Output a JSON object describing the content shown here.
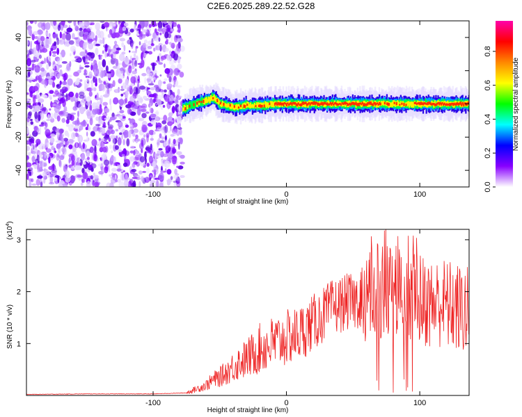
{
  "page": {
    "title": "C2E6.2025.289.22.52.G28"
  },
  "chart_data": [
    {
      "type": "heatmap",
      "title": "C2E6.2025.289.22.52.G28",
      "xlabel": "Height of straight line (km)",
      "ylabel": "Frequency (Hz)",
      "xlim": [
        -195,
        137
      ],
      "ylim": [
        -50,
        50
      ],
      "x_ticks": [
        -100,
        0,
        100
      ],
      "y_ticks": [
        -40,
        -20,
        0,
        20,
        40
      ],
      "noise_region_x": [
        -195,
        -78
      ],
      "signal_track": [
        {
          "x": -78,
          "y": -3
        },
        {
          "x": -70,
          "y": 0
        },
        {
          "x": -60,
          "y": 2
        },
        {
          "x": -55,
          "y": 4
        },
        {
          "x": -50,
          "y": 0
        },
        {
          "x": -40,
          "y": -2
        },
        {
          "x": -30,
          "y": -1
        },
        {
          "x": -20,
          "y": -1
        },
        {
          "x": -10,
          "y": 0
        },
        {
          "x": 0,
          "y": 0
        },
        {
          "x": 30,
          "y": 0
        },
        {
          "x": 60,
          "y": 0
        },
        {
          "x": 70,
          "y": 0
        },
        {
          "x": 90,
          "y": 0
        },
        {
          "x": 110,
          "y": 0
        },
        {
          "x": 137,
          "y": 0
        }
      ],
      "colorbar": {
        "label": "Normalized spectral amplitude",
        "ticks": [
          "0.0",
          "0.2",
          "0.4",
          "0.6",
          "0.8"
        ],
        "range": [
          0,
          0.98
        ],
        "colors": [
          "#ffffff",
          "#8800ff",
          "#0000ff",
          "#00ffff",
          "#00ff00",
          "#ffff00",
          "#ff8800",
          "#ff0000",
          "#ff00aa"
        ]
      }
    },
    {
      "type": "line",
      "xlabel": "Height of straight line (km)",
      "ylabel": "SNR (10 * v/v)",
      "multiplier_label": "(x10",
      "multiplier_exponent": "4",
      "multiplier_close": ")",
      "xlim": [
        -195,
        137
      ],
      "ylim": [
        0,
        3.2
      ],
      "x_ticks": [
        -100,
        0,
        100
      ],
      "y_ticks": [
        1,
        2,
        3
      ],
      "color": "#ee2222",
      "series": [
        {
          "name": "SNR",
          "x": [
            -195,
            -150,
            -100,
            -75,
            -70,
            -65,
            -60,
            -55,
            -50,
            -45,
            -40,
            -35,
            -30,
            -25,
            -20,
            -15,
            -10,
            -5,
            0,
            5,
            10,
            15,
            20,
            25,
            30,
            35,
            40,
            45,
            50,
            55,
            60,
            65,
            70,
            75,
            80,
            85,
            90,
            95,
            100,
            105,
            110,
            115,
            120,
            125,
            130,
            137
          ],
          "y": [
            0.02,
            0.03,
            0.03,
            0.05,
            0.1,
            0.15,
            0.2,
            0.3,
            0.35,
            0.45,
            0.55,
            0.65,
            0.7,
            0.8,
            0.9,
            0.95,
            1.0,
            1.05,
            1.1,
            1.15,
            1.2,
            1.3,
            1.4,
            1.5,
            1.6,
            1.7,
            1.75,
            1.8,
            1.8,
            1.85,
            1.9,
            1.95,
            1.95,
            2.0,
            2.05,
            2.0,
            1.95,
            1.9,
            1.85,
            1.8,
            1.75,
            1.8,
            1.75,
            1.7,
            1.65,
            1.6
          ]
        }
      ]
    }
  ]
}
